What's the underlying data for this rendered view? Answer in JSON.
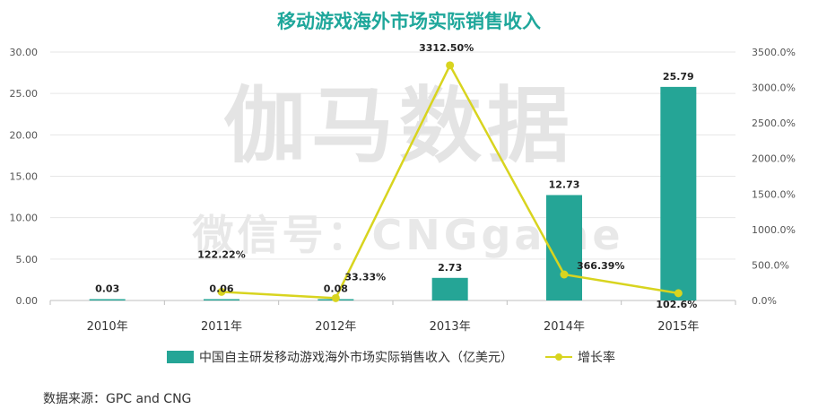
{
  "title": "移动游戏海外市场实际销售收入",
  "watermark": {
    "main": "伽马数据",
    "sub": "微信号：CNGgame"
  },
  "source": "数据来源：GPC and CNG",
  "chart_data": {
    "type": "bar",
    "categories": [
      "2010年",
      "2011年",
      "2012年",
      "2013年",
      "2014年",
      "2015年"
    ],
    "series": [
      {
        "name": "中国自主研发移动游戏海外市场实际销售收入（亿美元）",
        "type": "bar",
        "axis": "left",
        "color": "#25a596",
        "values": [
          0.03,
          0.06,
          0.08,
          2.73,
          12.73,
          25.79
        ],
        "labels": [
          "0.03",
          "0.06",
          "0.08",
          "2.73",
          "12.73",
          "25.79"
        ]
      },
      {
        "name": "增长率",
        "type": "line",
        "axis": "right",
        "color": "#d8d41f",
        "values": [
          null,
          122.22,
          33.33,
          3312.5,
          366.39,
          102.6
        ],
        "labels": [
          "",
          "122.22%",
          "33.33%",
          "3312.50%",
          "366.39%",
          "102.6%"
        ]
      }
    ],
    "y_left": {
      "range": [
        0,
        30
      ],
      "ticks": [
        "0.00",
        "5.00",
        "10.00",
        "15.00",
        "20.00",
        "25.00",
        "30.00"
      ]
    },
    "y_right": {
      "range": [
        0,
        3500
      ],
      "ticks": [
        "0.0%",
        "500.0%",
        "1000.0%",
        "1500.0%",
        "2000.0%",
        "2500.0%",
        "3000.0%",
        "3500.0%"
      ]
    },
    "grid": true,
    "legend_position": "bottom"
  }
}
